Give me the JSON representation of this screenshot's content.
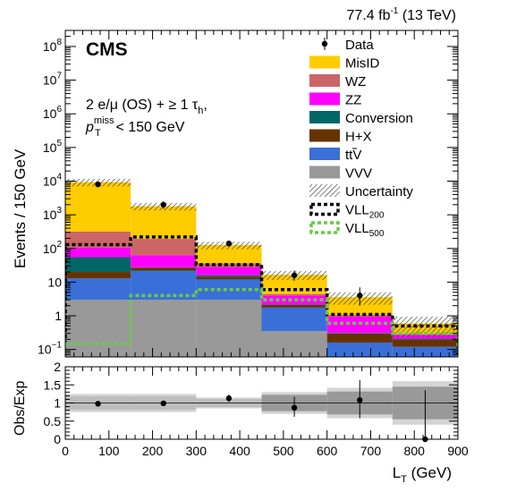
{
  "chart_data": [
    {
      "type": "bar",
      "stacked": true,
      "log_scale_y": true,
      "title": "",
      "header_right": "77.4 fb",
      "header_right_sup": "-1",
      "header_right_tail": " (13 TeV)",
      "experiment_label": "CMS",
      "selection_line1": "2 e/μ (OS) + ≥ 1 τ",
      "selection_line1_sub": "h",
      "selection_line1_tail": ",",
      "selection_line2_var": "p",
      "selection_line2_sup": "miss",
      "selection_line2_sub": "T",
      "selection_line2_tail": " < 150 GeV",
      "ylabel": "Events / 150 GeV",
      "ylim": [
        0.06,
        300000000
      ],
      "y_tick_labels": [
        {
          "value": 0.1,
          "base": "10",
          "exp": "−1"
        },
        {
          "value": 1,
          "text": "1"
        },
        {
          "value": 10,
          "text": "10"
        },
        {
          "value": 100,
          "base": "10",
          "exp": "2"
        },
        {
          "value": 1000,
          "base": "10",
          "exp": "3"
        },
        {
          "value": 10000,
          "base": "10",
          "exp": "4"
        },
        {
          "value": 100000,
          "base": "10",
          "exp": "5"
        },
        {
          "value": 1000000,
          "base": "10",
          "exp": "6"
        },
        {
          "value": 10000000,
          "base": "10",
          "exp": "7"
        },
        {
          "value": 100000000,
          "base": "10",
          "exp": "8"
        }
      ],
      "bin_edges": [
        0,
        150,
        300,
        450,
        600,
        750,
        900
      ],
      "series": [
        {
          "name": "VVV",
          "color": "#999999",
          "values": [
            3,
            3,
            3,
            0.35,
            0.06,
            0.06
          ]
        },
        {
          "name": "tt̄V",
          "color": "#3a6fd8",
          "values": [
            10,
            19,
            9,
            1.4,
            0.1,
            0.06
          ]
        },
        {
          "name": "H+X",
          "color": "#663300",
          "values": [
            7,
            5,
            2.5,
            0.35,
            0.14,
            0.08
          ]
        },
        {
          "name": "Conversion",
          "color": "#006666",
          "values": [
            35,
            0.6,
            1.5,
            0.05,
            0.01,
            0.01
          ]
        },
        {
          "name": "ZZ",
          "color": "#ff00ff",
          "values": [
            50,
            35,
            12,
            1.8,
            0.65,
            0.06
          ]
        },
        {
          "name": "WZ",
          "color": "#cc6666",
          "values": [
            210,
            130,
            8,
            0.5,
            0.1,
            0.02
          ]
        },
        {
          "name": "MisID",
          "color": "#ffcc00",
          "values": [
            9000,
            1600,
            90,
            12,
            2.5,
            0.3
          ]
        }
      ],
      "data_points": {
        "name": "Data",
        "values": [
          8000,
          2000,
          140,
          16,
          4,
          0
        ],
        "err_up": [
          1000,
          500,
          25,
          6,
          3,
          0
        ],
        "err_down": [
          1000,
          500,
          25,
          5,
          2,
          0
        ]
      },
      "uncertainty": {
        "name": "Uncertainty",
        "rel": [
          0.25,
          0.25,
          0.25,
          0.3,
          0.4,
          0.6
        ]
      },
      "signals": [
        {
          "name": "VLL",
          "sub": "200",
          "color": "#000000",
          "values": [
            130,
            220,
            33,
            6,
            1.1,
            0.5
          ]
        },
        {
          "name": "VLL",
          "sub": "500",
          "color": "#66cc44",
          "values": [
            0.15,
            4,
            6,
            3,
            0.6,
            0.3
          ]
        }
      ],
      "legend": {
        "placement": "top-right",
        "data_label": "Data",
        "stack_order": [
          "MisID",
          "WZ",
          "ZZ",
          "Conversion",
          "H+X",
          "tt̄V",
          "VVV"
        ],
        "ttv_text": "ttV",
        "uncertainty_label": "Uncertainty"
      }
    },
    {
      "type": "scatter",
      "title": "",
      "ylabel": "Obs/Exp",
      "xlabel": "L",
      "xlabel_sub": "T",
      "xlabel_tail": " (GeV)",
      "xlim": [
        0,
        900
      ],
      "ylim": [
        0,
        2
      ],
      "x_ticks": [
        0,
        100,
        200,
        300,
        400,
        500,
        600,
        700,
        800,
        900
      ],
      "y_ticks": [
        0,
        0.5,
        1,
        1.5,
        2
      ],
      "ratio_values": [
        0.98,
        0.99,
        1.13,
        0.87,
        1.08,
        0.0
      ],
      "ratio_err_up": [
        0.04,
        0.05,
        0.1,
        0.3,
        0.55,
        1.35
      ],
      "ratio_err_down": [
        0.04,
        0.05,
        0.1,
        0.25,
        0.5,
        0.0
      ],
      "band_rel": [
        0.25,
        0.25,
        0.15,
        0.3,
        0.42,
        0.6
      ]
    }
  ]
}
